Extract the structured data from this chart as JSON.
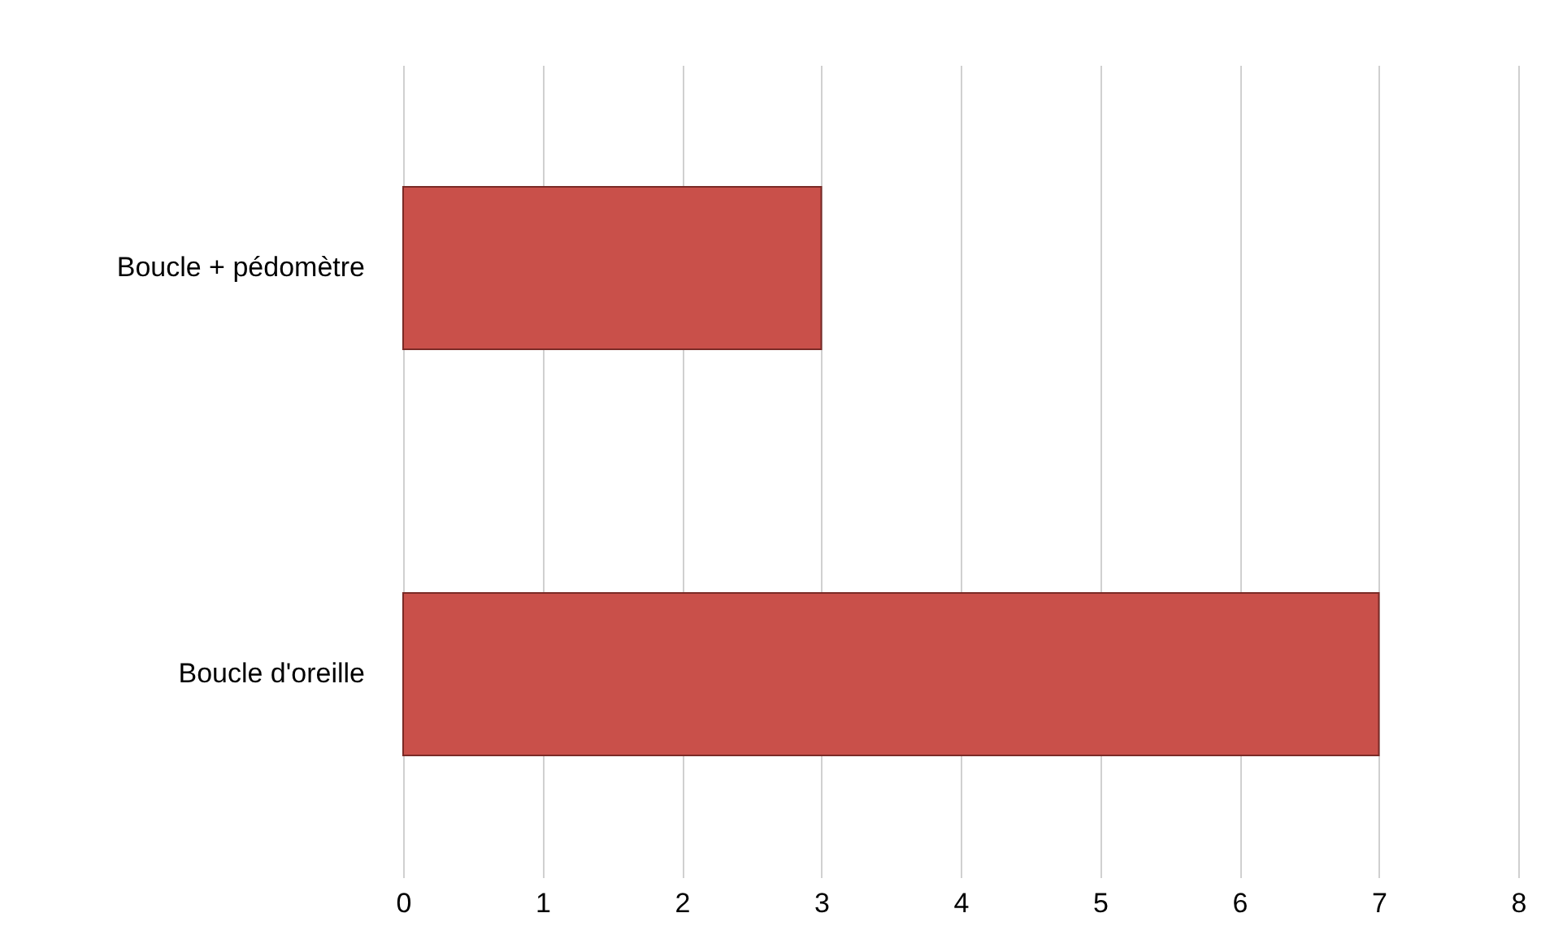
{
  "chart_data": {
    "type": "bar",
    "orientation": "horizontal",
    "categories": [
      "Boucle + pédomètre",
      "Boucle d'oreille"
    ],
    "values": [
      3,
      7
    ],
    "color": "#c9504a",
    "xlim": [
      0,
      8
    ],
    "xticks": [
      0,
      1,
      2,
      3,
      4,
      5,
      6,
      7,
      8
    ],
    "grid": "x"
  }
}
